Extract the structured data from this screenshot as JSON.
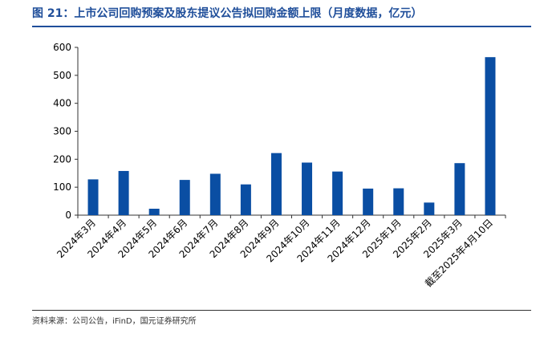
{
  "header": {
    "title": "图 21：上市公司回购预案及股东提议公告拟回购金额上限（月度数据，亿元）"
  },
  "footer": {
    "source": "资料来源：公司公告，iFinD，国元证券研究所"
  },
  "colors": {
    "bar": "#0a4ea3",
    "title": "#1f4e9a",
    "axis": "#333333"
  },
  "chart_data": {
    "type": "bar",
    "categories": [
      "2024年3月",
      "2024年4月",
      "2024年5月",
      "2024年6月",
      "2024年7月",
      "2024年8月",
      "2024年9月",
      "2024年10月",
      "2024年11月",
      "2024年12月",
      "2025年1月",
      "2025年2月",
      "2025年3月",
      "截至2025年4月10日"
    ],
    "values": [
      128,
      158,
      23,
      126,
      148,
      110,
      222,
      188,
      156,
      95,
      96,
      45,
      186,
      565
    ],
    "yticks": [
      0,
      100,
      200,
      300,
      400,
      500,
      600
    ],
    "ylim": [
      0,
      600
    ],
    "grid": false,
    "legend": "none"
  }
}
